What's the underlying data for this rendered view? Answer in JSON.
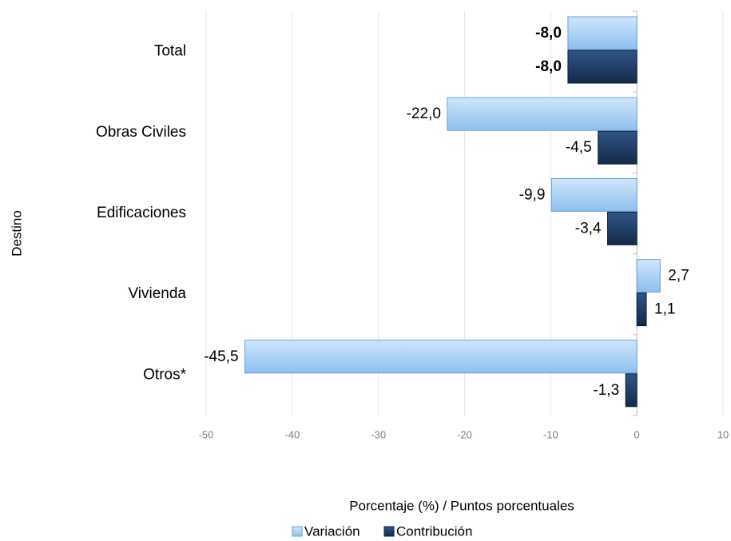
{
  "chart_data": {
    "type": "hbar",
    "categories": [
      "Total",
      "Obras Civiles",
      "Edificaciones",
      "Vivienda",
      "Otros*"
    ],
    "series": [
      {
        "name": "Variación",
        "color": "#a9d0f5",
        "values": [
          -8.0,
          -22.0,
          -9.9,
          2.7,
          -45.5
        ],
        "value_labels": [
          "-8,0",
          "-22,0",
          "-9,9",
          "2,7",
          "-45,5"
        ]
      },
      {
        "name": "Contribución",
        "color": "#1f3a60",
        "values": [
          -8.0,
          -4.5,
          -3.4,
          1.1,
          -1.3
        ],
        "value_labels": [
          "-8,0",
          "-4,5",
          "-3,4",
          "1,1",
          "-1,3"
        ]
      }
    ],
    "xlim": [
      -50,
      10
    ],
    "xticks": [
      -50,
      -40,
      -30,
      -20,
      -10,
      0,
      10
    ],
    "xlabel": "Porcentaje (%) / Puntos porcentuales",
    "ylabel": "Destino",
    "grid": true,
    "legend": "bottom"
  }
}
